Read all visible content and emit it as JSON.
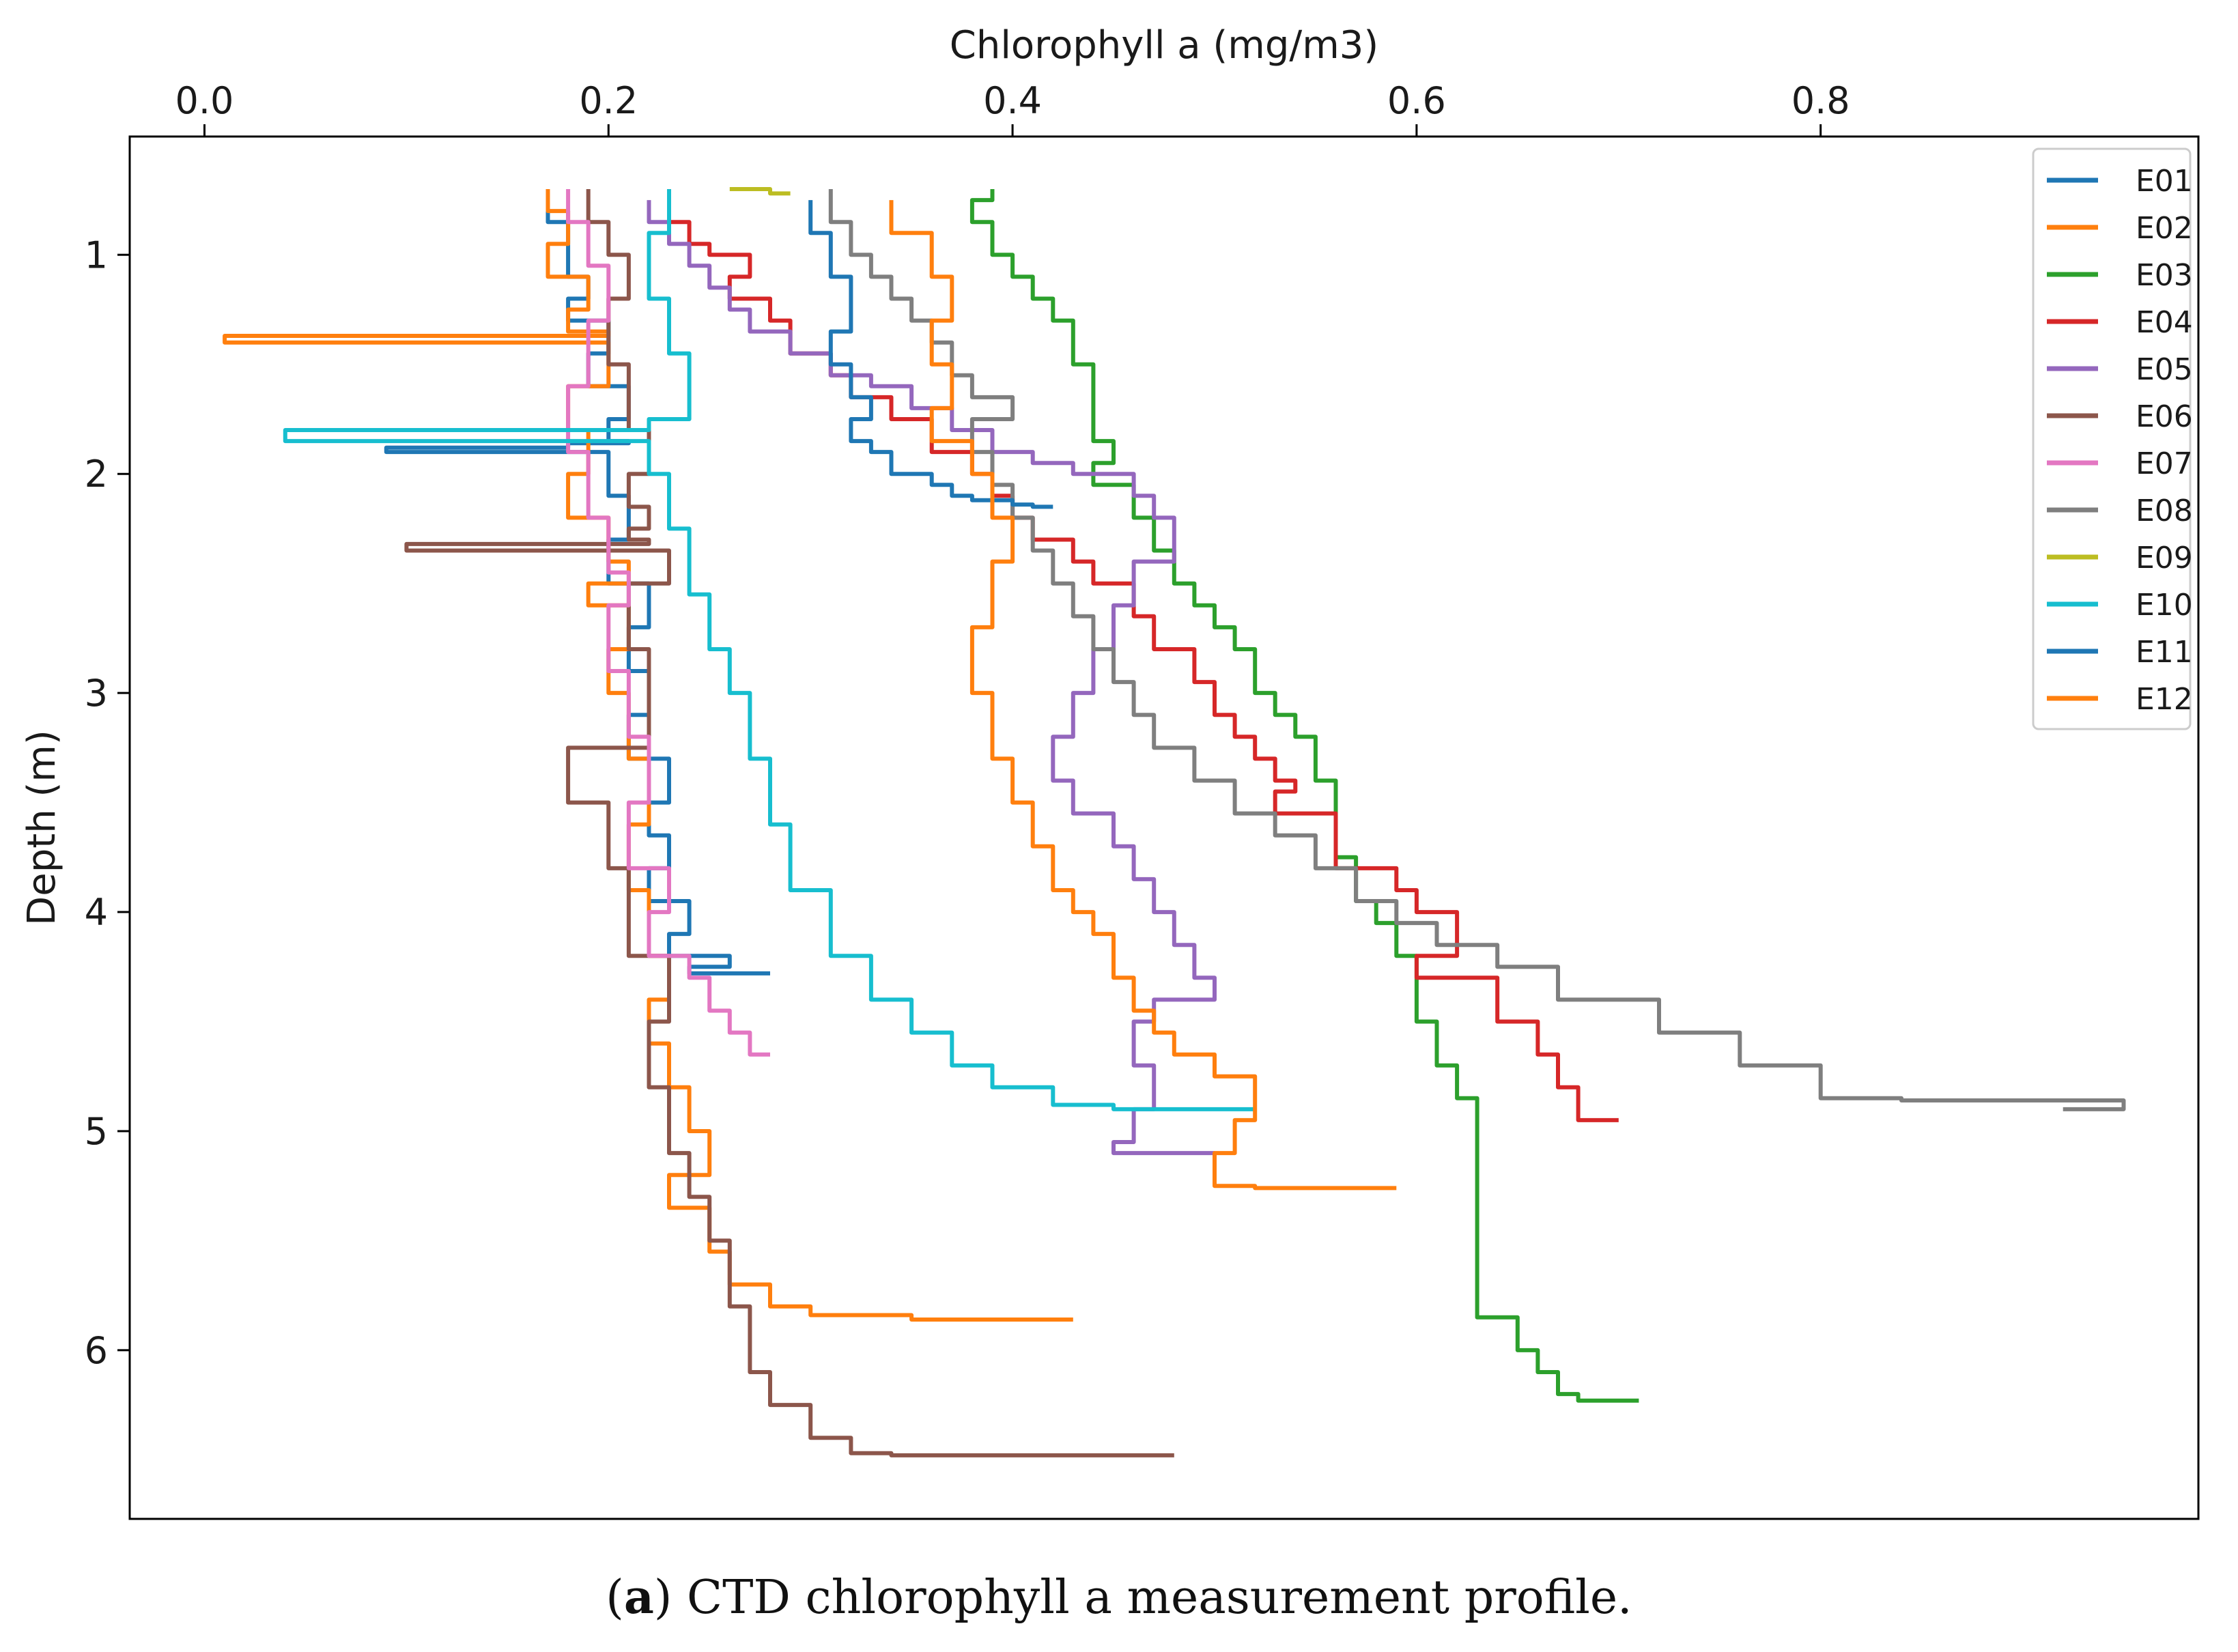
{
  "chart_data": {
    "type": "line",
    "title": "",
    "xlabel": "Chlorophyll a (mg/m3)",
    "ylabel": "Depth (m)",
    "xlim": [
      -0.037,
      0.987
    ],
    "ylim": [
      6.77,
      0.46
    ],
    "x_axis_position": "top",
    "y_inverted": true,
    "grid": false,
    "legend_location": "top-right",
    "xticks": [
      0.0,
      0.2,
      0.4,
      0.6,
      0.8
    ],
    "xtick_labels": [
      "0.0",
      "0.2",
      "0.4",
      "0.6",
      "0.8"
    ],
    "yticks": [
      1,
      2,
      3,
      4,
      5,
      6
    ],
    "ytick_labels": [
      "1",
      "2",
      "3",
      "4",
      "5",
      "6"
    ],
    "series": [
      {
        "name": "E01",
        "color": "#1f77b4",
        "x": [
          0.17,
          0.18,
          0.18,
          0.19,
          0.18,
          0.2,
          0.19,
          0.21,
          0.2,
          0.21,
          0.18,
          0.09,
          0.2,
          0.21,
          0.2,
          0.22,
          0.21,
          0.22,
          0.21,
          0.23,
          0.22,
          0.23,
          0.22,
          0.24,
          0.23,
          0.26,
          0.24,
          0.28
        ],
        "y": [
          0.7,
          0.85,
          1.0,
          1.1,
          1.2,
          1.3,
          1.45,
          1.6,
          1.75,
          1.85,
          1.86,
          1.88,
          1.9,
          2.1,
          2.3,
          2.5,
          2.7,
          2.9,
          3.1,
          3.3,
          3.5,
          3.65,
          3.8,
          3.95,
          4.1,
          4.2,
          4.25,
          4.28
        ]
      },
      {
        "name": "E02",
        "color": "#ff7f0e",
        "x": [
          0.17,
          0.18,
          0.17,
          0.19,
          0.18,
          0.2,
          0.01,
          0.2,
          0.18,
          0.19,
          0.18,
          0.2,
          0.21,
          0.19,
          0.21,
          0.2,
          0.21,
          0.22,
          0.21,
          0.22,
          0.23,
          0.22,
          0.23,
          0.24,
          0.25,
          0.23,
          0.25,
          0.26,
          0.28,
          0.3,
          0.35,
          0.43
        ],
        "y": [
          0.7,
          0.8,
          0.95,
          1.1,
          1.25,
          1.35,
          1.37,
          1.4,
          1.6,
          1.8,
          2.0,
          2.2,
          2.4,
          2.5,
          2.6,
          2.8,
          3.0,
          3.3,
          3.6,
          3.9,
          4.2,
          4.4,
          4.6,
          4.8,
          5.0,
          5.2,
          5.35,
          5.55,
          5.7,
          5.8,
          5.84,
          5.86
        ]
      },
      {
        "name": "E03",
        "color": "#2ca02c",
        "x": [
          0.39,
          0.38,
          0.39,
          0.4,
          0.41,
          0.42,
          0.43,
          0.44,
          0.44,
          0.45,
          0.44,
          0.46,
          0.47,
          0.48,
          0.49,
          0.5,
          0.51,
          0.52,
          0.53,
          0.54,
          0.55,
          0.56,
          0.56,
          0.57,
          0.58,
          0.59,
          0.6,
          0.61,
          0.62,
          0.63,
          0.63,
          0.65,
          0.66,
          0.67,
          0.68,
          0.71
        ],
        "y": [
          0.7,
          0.75,
          0.85,
          1.0,
          1.1,
          1.2,
          1.3,
          1.5,
          1.7,
          1.85,
          1.95,
          2.05,
          2.2,
          2.35,
          2.5,
          2.6,
          2.7,
          2.8,
          3.0,
          3.1,
          3.2,
          3.4,
          3.6,
          3.75,
          3.95,
          4.05,
          4.2,
          4.5,
          4.7,
          4.85,
          5.2,
          5.85,
          6.0,
          6.1,
          6.2,
          6.23
        ]
      },
      {
        "name": "E04",
        "color": "#d62728",
        "x": [
          0.23,
          0.24,
          0.25,
          0.27,
          0.26,
          0.28,
          0.29,
          0.31,
          0.32,
          0.34,
          0.36,
          0.38,
          0.39,
          0.4,
          0.41,
          0.43,
          0.44,
          0.46,
          0.47,
          0.49,
          0.5,
          0.51,
          0.52,
          0.53,
          0.54,
          0.53,
          0.56,
          0.59,
          0.6,
          0.62,
          0.6,
          0.64,
          0.66,
          0.67,
          0.68,
          0.7
        ],
        "y": [
          0.75,
          0.85,
          0.95,
          1.0,
          1.1,
          1.2,
          1.3,
          1.45,
          1.55,
          1.65,
          1.75,
          1.9,
          2.0,
          2.1,
          2.2,
          2.3,
          2.4,
          2.5,
          2.65,
          2.8,
          2.95,
          3.1,
          3.2,
          3.3,
          3.4,
          3.45,
          3.55,
          3.8,
          3.9,
          4.0,
          4.2,
          4.3,
          4.5,
          4.65,
          4.8,
          4.95
        ]
      },
      {
        "name": "E05",
        "color": "#9467bd",
        "x": [
          0.22,
          0.23,
          0.24,
          0.25,
          0.26,
          0.27,
          0.29,
          0.31,
          0.33,
          0.35,
          0.37,
          0.39,
          0.41,
          0.43,
          0.46,
          0.47,
          0.48,
          0.46,
          0.45,
          0.44,
          0.43,
          0.42,
          0.43,
          0.45,
          0.46,
          0.47,
          0.48,
          0.49,
          0.5,
          0.47,
          0.46,
          0.47,
          0.46,
          0.45,
          0.5
        ],
        "y": [
          0.75,
          0.85,
          0.95,
          1.05,
          1.15,
          1.25,
          1.35,
          1.45,
          1.55,
          1.6,
          1.7,
          1.8,
          1.9,
          1.95,
          2.0,
          2.1,
          2.2,
          2.4,
          2.6,
          2.8,
          3.0,
          3.2,
          3.4,
          3.55,
          3.7,
          3.85,
          4.0,
          4.15,
          4.3,
          4.4,
          4.5,
          4.7,
          4.9,
          5.05,
          5.1
        ]
      },
      {
        "name": "E06",
        "color": "#8c564b",
        "x": [
          0.19,
          0.2,
          0.21,
          0.2,
          0.21,
          0.22,
          0.21,
          0.22,
          0.21,
          0.22,
          0.1,
          0.23,
          0.21,
          0.22,
          0.18,
          0.2,
          0.21,
          0.23,
          0.22,
          0.23,
          0.24,
          0.25,
          0.26,
          0.27,
          0.28,
          0.3,
          0.32,
          0.34,
          0.48
        ],
        "y": [
          0.7,
          0.85,
          1.0,
          1.2,
          1.5,
          1.8,
          2.0,
          2.15,
          2.25,
          2.3,
          2.32,
          2.35,
          2.5,
          2.8,
          3.25,
          3.5,
          3.8,
          4.2,
          4.5,
          4.8,
          5.1,
          5.3,
          5.5,
          5.8,
          6.1,
          6.25,
          6.4,
          6.47,
          6.48
        ]
      },
      {
        "name": "E07",
        "color": "#e377c2",
        "x": [
          0.18,
          0.19,
          0.2,
          0.19,
          0.18,
          0.19,
          0.2,
          0.21,
          0.2,
          0.21,
          0.22,
          0.21,
          0.23,
          0.22,
          0.24,
          0.25,
          0.26,
          0.27,
          0.28
        ],
        "y": [
          0.7,
          0.85,
          1.05,
          1.3,
          1.6,
          1.9,
          2.2,
          2.45,
          2.6,
          2.9,
          3.2,
          3.5,
          3.8,
          4.0,
          4.2,
          4.3,
          4.45,
          4.55,
          4.65
        ]
      },
      {
        "name": "E08",
        "color": "#7f7f7f",
        "x": [
          0.31,
          0.32,
          0.33,
          0.34,
          0.35,
          0.36,
          0.37,
          0.38,
          0.4,
          0.38,
          0.39,
          0.4,
          0.41,
          0.42,
          0.43,
          0.44,
          0.45,
          0.46,
          0.47,
          0.49,
          0.51,
          0.53,
          0.55,
          0.57,
          0.59,
          0.61,
          0.64,
          0.67,
          0.72,
          0.76,
          0.8,
          0.84,
          0.95,
          0.92
        ],
        "y": [
          0.7,
          0.85,
          1.0,
          1.1,
          1.2,
          1.3,
          1.4,
          1.55,
          1.65,
          1.75,
          1.9,
          2.05,
          2.2,
          2.35,
          2.5,
          2.65,
          2.8,
          2.95,
          3.1,
          3.25,
          3.4,
          3.55,
          3.65,
          3.8,
          3.95,
          4.05,
          4.15,
          4.25,
          4.4,
          4.55,
          4.7,
          4.85,
          4.86,
          4.9
        ]
      },
      {
        "name": "E09",
        "color": "#bcbd22",
        "x": [
          0.26,
          0.28,
          0.29
        ],
        "y": [
          0.7,
          0.7,
          0.72
        ]
      },
      {
        "name": "E10",
        "color": "#17becf",
        "x": [
          0.23,
          0.22,
          0.23,
          0.24,
          0.22,
          0.04,
          0.22,
          0.23,
          0.24,
          0.25,
          0.26,
          0.27,
          0.28,
          0.29,
          0.31,
          0.33,
          0.35,
          0.37,
          0.39,
          0.42,
          0.45,
          0.52
        ],
        "y": [
          0.7,
          0.9,
          1.2,
          1.45,
          1.75,
          1.8,
          1.85,
          2.0,
          2.25,
          2.55,
          2.8,
          3.0,
          3.3,
          3.6,
          3.9,
          4.2,
          4.4,
          4.55,
          4.7,
          4.8,
          4.88,
          4.9
        ]
      },
      {
        "name": "E11",
        "color": "#1f77b4",
        "x": [
          0.3,
          0.31,
          0.32,
          0.31,
          0.32,
          0.33,
          0.32,
          0.33,
          0.34,
          0.36,
          0.37,
          0.38,
          0.4,
          0.41,
          0.42
        ],
        "y": [
          0.75,
          0.9,
          1.1,
          1.35,
          1.5,
          1.65,
          1.75,
          1.85,
          1.9,
          2.0,
          2.05,
          2.1,
          2.12,
          2.14,
          2.15
        ]
      },
      {
        "name": "E12",
        "color": "#ff7f0e",
        "x": [
          0.34,
          0.36,
          0.37,
          0.36,
          0.37,
          0.36,
          0.38,
          0.39,
          0.4,
          0.39,
          0.38,
          0.39,
          0.4,
          0.41,
          0.42,
          0.43,
          0.44,
          0.45,
          0.46,
          0.47,
          0.48,
          0.5,
          0.52,
          0.51,
          0.5,
          0.52,
          0.59
        ],
        "y": [
          0.75,
          0.9,
          1.1,
          1.3,
          1.5,
          1.7,
          1.85,
          2.0,
          2.2,
          2.4,
          2.7,
          3.0,
          3.3,
          3.5,
          3.7,
          3.9,
          4.0,
          4.1,
          4.3,
          4.45,
          4.55,
          4.65,
          4.75,
          4.95,
          5.1,
          5.25,
          5.26
        ]
      }
    ]
  },
  "caption": {
    "label": "a",
    "text": " CTD chlorophyll a measurement profile."
  }
}
